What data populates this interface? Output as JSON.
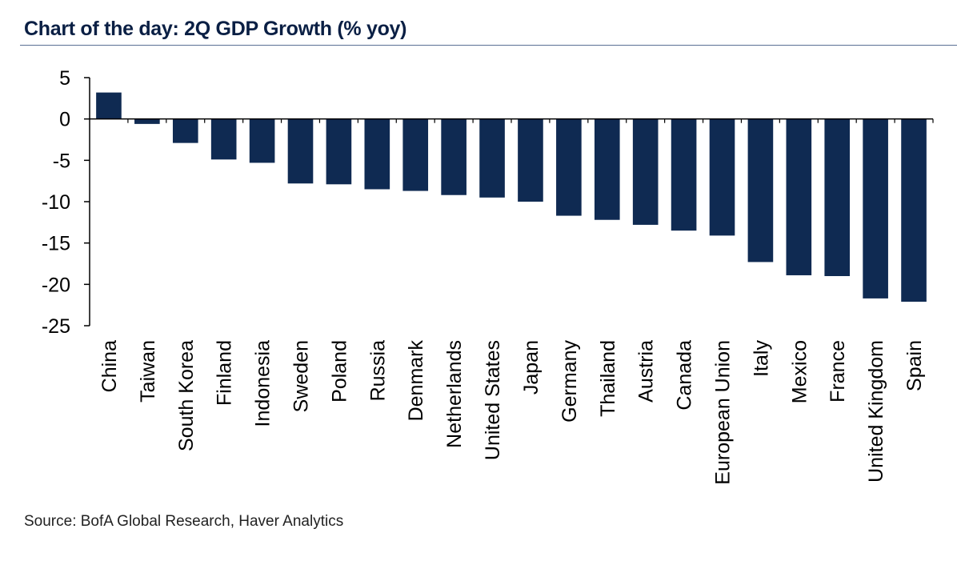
{
  "title": "Chart of the day: 2Q GDP Growth (% yoy)",
  "source": "Source: BofA Global Research, Haver Analytics",
  "colors": {
    "bar": "#0f2a52",
    "title": "#0a1f44",
    "rule": "#5b6f94",
    "axis": "#000000"
  },
  "chart_data": {
    "type": "bar",
    "title": "Chart of the day: 2Q GDP Growth (% yoy)",
    "xlabel": "",
    "ylabel": "",
    "ylim": [
      -25,
      5
    ],
    "yticks": [
      5,
      0,
      -5,
      -10,
      -15,
      -20,
      -25
    ],
    "grid": false,
    "categories": [
      "China",
      "Taiwan",
      "South Korea",
      "Finland",
      "Indonesia",
      "Sweden",
      "Poland",
      "Russia",
      "Denmark",
      "Netherlands",
      "United States",
      "Japan",
      "Germany",
      "Thailand",
      "Austria",
      "Canada",
      "European Union",
      "Italy",
      "Mexico",
      "France",
      "United Kingdom",
      "Spain"
    ],
    "values": [
      3.2,
      -0.6,
      -2.9,
      -4.9,
      -5.3,
      -7.8,
      -7.9,
      -8.5,
      -8.7,
      -9.2,
      -9.5,
      -10.0,
      -11.7,
      -12.2,
      -12.8,
      -13.5,
      -14.1,
      -17.3,
      -18.9,
      -19.0,
      -21.7,
      -22.1
    ]
  }
}
